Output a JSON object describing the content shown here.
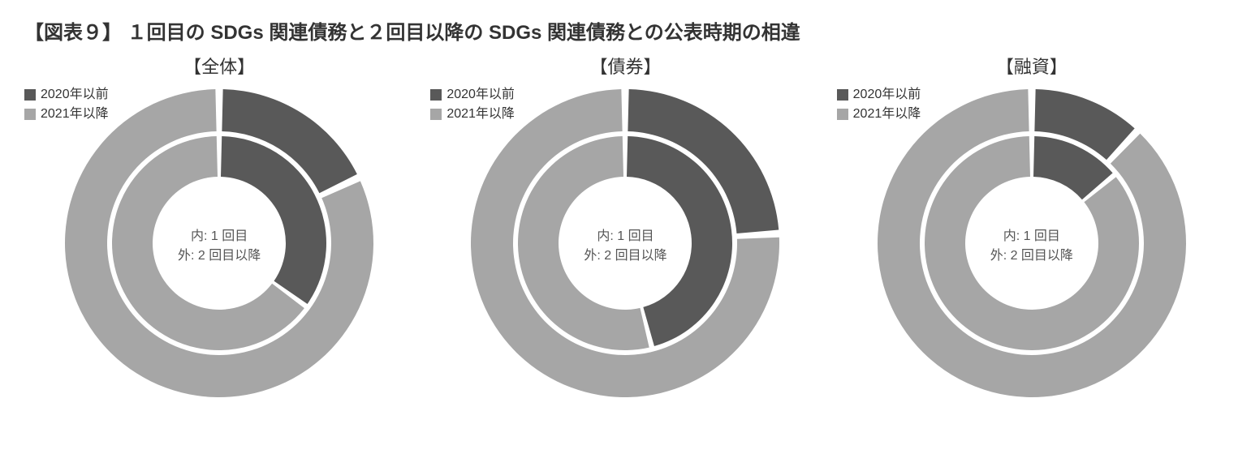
{
  "title": "【図表９】 １回目の SDGs 関連債務と２回目以降の SDGs 関連債務との公表時期の相違",
  "colors": {
    "before2020": "#595959",
    "after2021": "#a6a6a6",
    "gap": "#ffffff",
    "background": "#ffffff",
    "text": "#333333",
    "centerText": "#777777"
  },
  "legend": {
    "item1": "2020年以前",
    "item2": "2021年以降"
  },
  "centerLabels": {
    "inner": "内: 1 回目",
    "outer": "外: 2 回目以降"
  },
  "donut": {
    "size": 390,
    "outer_r_out": 190,
    "outer_r_in": 138,
    "inner_r_out": 132,
    "inner_r_in": 82,
    "gap_deg": 1.4,
    "start_angle_deg": -90
  },
  "panels": [
    {
      "key": "overall",
      "subtitle": "【全体】",
      "inner": {
        "before2020": 35,
        "after2021": 65
      },
      "outer": {
        "before2020": 18,
        "after2021": 82
      }
    },
    {
      "key": "bonds",
      "subtitle": "【債券】",
      "inner": {
        "before2020": 46,
        "after2021": 54
      },
      "outer": {
        "before2020": 24,
        "after2021": 76
      }
    },
    {
      "key": "loans",
      "subtitle": "【融資】",
      "inner": {
        "before2020": 14,
        "after2021": 86
      },
      "outer": {
        "before2020": 12,
        "after2021": 88
      }
    }
  ]
}
